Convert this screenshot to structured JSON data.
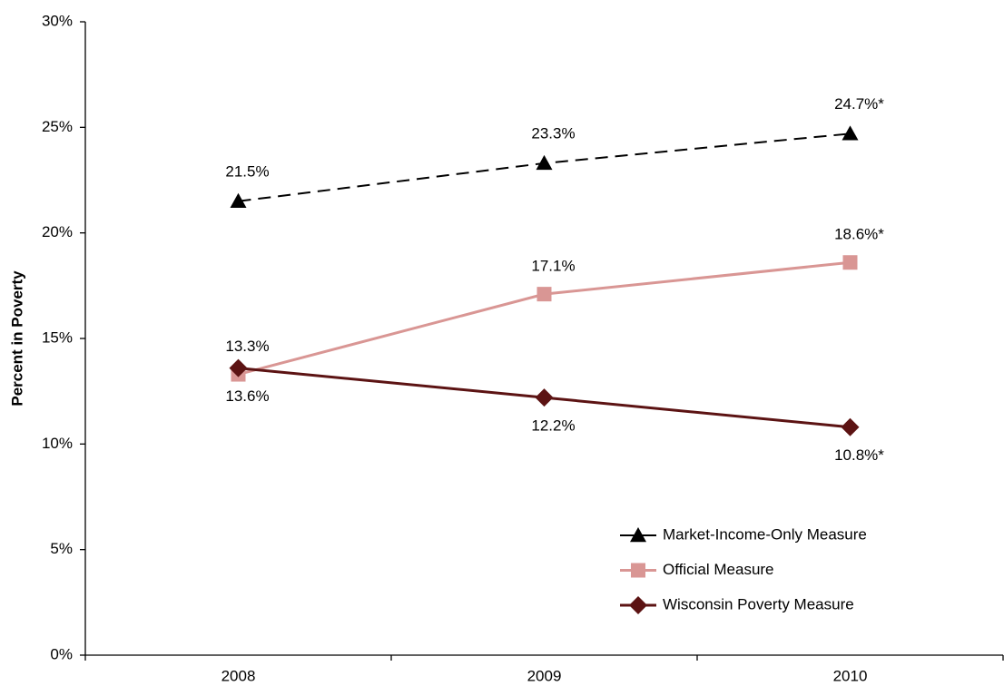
{
  "chart_data": {
    "type": "line",
    "y_label": "Percent in Poverty",
    "categories": [
      "2008",
      "2009",
      "2010"
    ],
    "series": [
      {
        "name": "Market-Income-Only Measure",
        "color": "#000000",
        "marker": "triangle",
        "dashed": true,
        "values": [
          21.5,
          23.3,
          24.7
        ],
        "value_labels": [
          "21.5%",
          "23.3%",
          "24.7%*"
        ]
      },
      {
        "name": "Official Measure",
        "color": "#d99694",
        "marker": "square",
        "dashed": false,
        "values": [
          13.3,
          17.1,
          18.6
        ],
        "value_labels": [
          "13.3%",
          "17.1%",
          "18.6%*"
        ]
      },
      {
        "name": "Wisconsin Poverty Measure",
        "color": "#5c1313",
        "marker": "diamond",
        "dashed": false,
        "values": [
          13.6,
          12.2,
          10.8
        ],
        "value_labels": [
          "13.6%",
          "12.2%",
          "10.8%*"
        ]
      }
    ],
    "ylim": [
      0,
      30
    ],
    "yticks": [
      {
        "value": 0,
        "label": "0%"
      },
      {
        "value": 5,
        "label": "5%"
      },
      {
        "value": 10,
        "label": "10%"
      },
      {
        "value": 15,
        "label": "15%"
      },
      {
        "value": 20,
        "label": "20%"
      },
      {
        "value": 25,
        "label": "25%"
      },
      {
        "value": 30,
        "label": "30%"
      }
    ],
    "grid": false,
    "legend": "lower right"
  }
}
